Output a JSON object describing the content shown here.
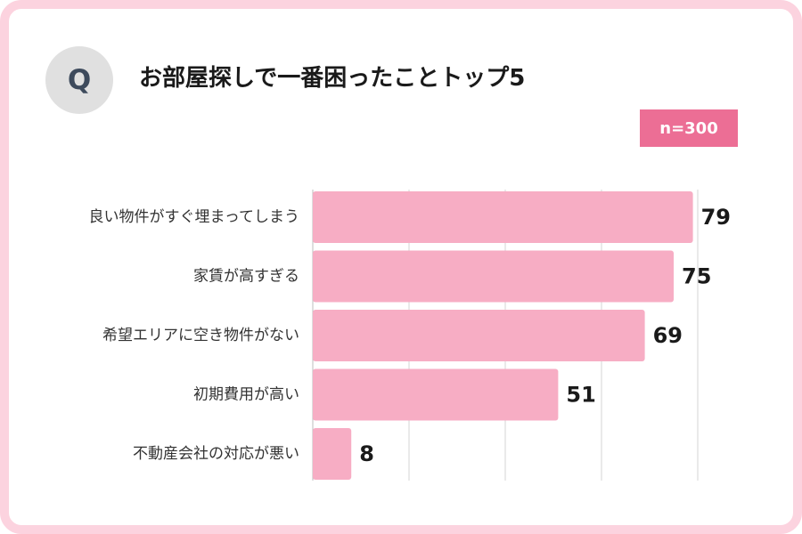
{
  "header": {
    "q_label": "Q",
    "title": "お部屋探しで一番困ったことトップ5",
    "sample": "n=300"
  },
  "colors": {
    "frame": "#fcd3df",
    "bar": "#f7adc4",
    "badge": "#ec6e95",
    "q_circle": "#e0e0e0"
  },
  "chart_data": {
    "type": "bar",
    "orientation": "horizontal",
    "categories": [
      "良い物件がすぐ埋まってしまう",
      "家賃が高すぎる",
      "希望エリアに空き物件がない",
      "初期費用が高い",
      "不動産会社の対応が悪い"
    ],
    "values": [
      79,
      75,
      69,
      51,
      8
    ],
    "xlim": [
      0,
      80
    ],
    "grid": true,
    "legend": "none"
  }
}
